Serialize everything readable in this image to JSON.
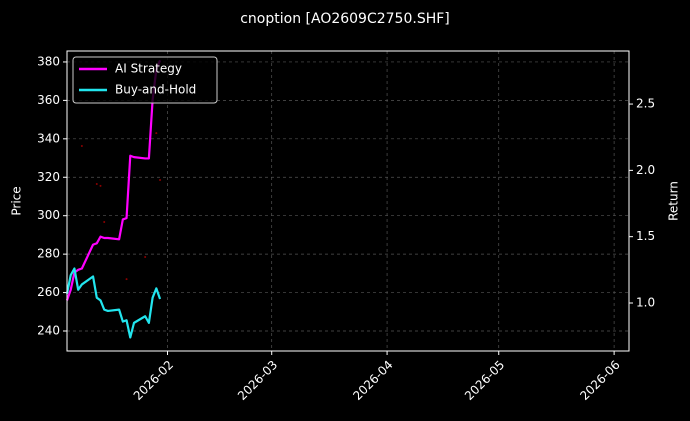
{
  "chart_data": {
    "type": "line",
    "title": "cnoption [AO2609C2750.SHF]",
    "ylabel": "Price",
    "y2label": "Return",
    "x": [
      "2026-01-05",
      "2026-01-06",
      "2026-01-07",
      "2026-01-08",
      "2026-01-09",
      "2026-01-12",
      "2026-01-13",
      "2026-01-14",
      "2026-01-15",
      "2026-01-16",
      "2026-01-19",
      "2026-01-20",
      "2026-01-21",
      "2026-01-22",
      "2026-01-23",
      "2026-01-26",
      "2026-01-27",
      "2026-01-28",
      "2026-01-29",
      "2026-01-30"
    ],
    "series": [
      {
        "name": "AI Strategy",
        "color": "#ff00ff",
        "axis": "y2",
        "values": [
          1.02,
          1.1,
          1.23,
          1.25,
          1.26,
          1.44,
          1.45,
          1.5,
          1.49,
          1.49,
          1.48,
          1.63,
          1.64,
          2.11,
          2.1,
          2.09,
          2.09,
          2.53,
          2.76,
          2.83
        ]
      },
      {
        "name": "Buy-and-Hold",
        "color": "#22e5ee",
        "axis": "y2",
        "values": [
          1.07,
          1.21,
          1.26,
          1.1,
          1.14,
          1.2,
          1.04,
          1.02,
          0.95,
          0.94,
          0.95,
          0.86,
          0.87,
          0.74,
          0.85,
          0.9,
          0.85,
          1.04,
          1.11,
          1.03
        ]
      }
    ],
    "scatter": {
      "color": "#8b0000",
      "x": [
        "2026-01-09",
        "2026-01-13",
        "2026-01-14",
        "2026-01-15",
        "2026-01-21",
        "2026-01-26",
        "2026-01-29",
        "2026-01-30"
      ],
      "values": [
        336.3,
        316.5,
        315.5,
        296.7,
        267,
        278.5,
        343,
        318.6
      ]
    },
    "xlim": [
      "2026-01-05",
      "2026-06-05"
    ],
    "xticks": [
      {
        "value": "2026-02-01",
        "label": "2026-02"
      },
      {
        "value": "2026-03-01",
        "label": "2026-03"
      },
      {
        "value": "2026-04-01",
        "label": "2026-04"
      },
      {
        "value": "2026-05-01",
        "label": "2026-05"
      },
      {
        "value": "2026-06-01",
        "label": "2026-06"
      }
    ],
    "ylim": [
      229.6,
      385.7
    ],
    "yticks": [
      240,
      260,
      280,
      300,
      320,
      340,
      360,
      380
    ],
    "y2lim": [
      0.638,
      2.9
    ],
    "y2ticks": [
      {
        "value": 1,
        "label": "1.0"
      },
      {
        "value": 1.5,
        "label": "1.5"
      },
      {
        "value": 2,
        "label": "2.0"
      },
      {
        "value": 2.5,
        "label": "2.5"
      }
    ],
    "grid": true,
    "legend": "upper-left"
  }
}
